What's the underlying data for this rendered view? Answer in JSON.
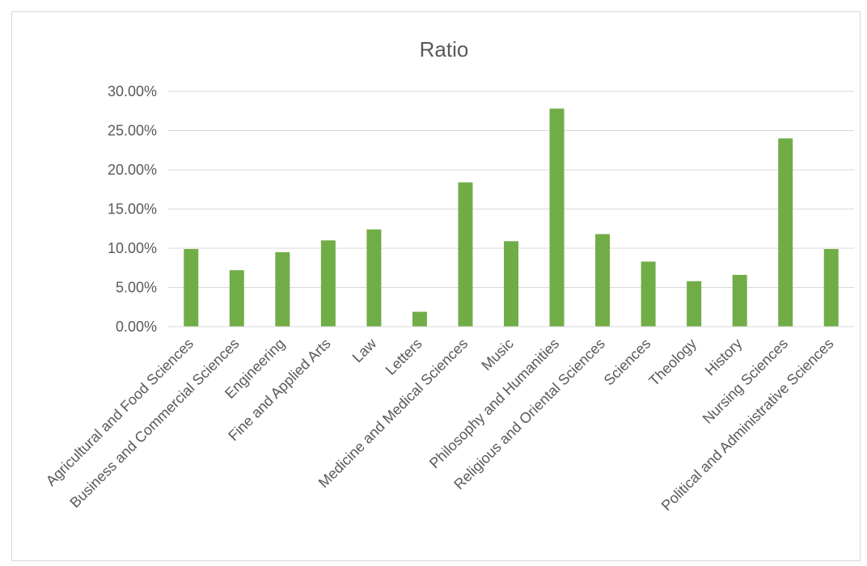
{
  "chart_data": {
    "type": "bar",
    "title": "Ratio",
    "xlabel": "",
    "ylabel": "",
    "ylim": [
      0,
      0.3
    ],
    "yticks": [
      "0.00%",
      "5.00%",
      "10.00%",
      "15.00%",
      "20.00%",
      "25.00%",
      "30.00%"
    ],
    "grid": true,
    "legend": "none",
    "bar_color": "#70ad47",
    "categories": [
      "Agricultural and Food Sciences",
      "Business and Commercial Sciences",
      "Engineering",
      "Fine and Applied Arts",
      "Law",
      "Letters",
      "Medicine and Medical Sciences",
      "Music",
      "Philosophy and Humanities",
      "Religious and Oriental Sciences",
      "Sciences",
      "Theology",
      "History",
      "Nursing Sciences",
      "Political and Administrative Sciences"
    ],
    "values": [
      0.099,
      0.072,
      0.095,
      0.11,
      0.124,
      0.019,
      0.184,
      0.109,
      0.278,
      0.118,
      0.083,
      0.058,
      0.066,
      0.24,
      0.099
    ]
  }
}
